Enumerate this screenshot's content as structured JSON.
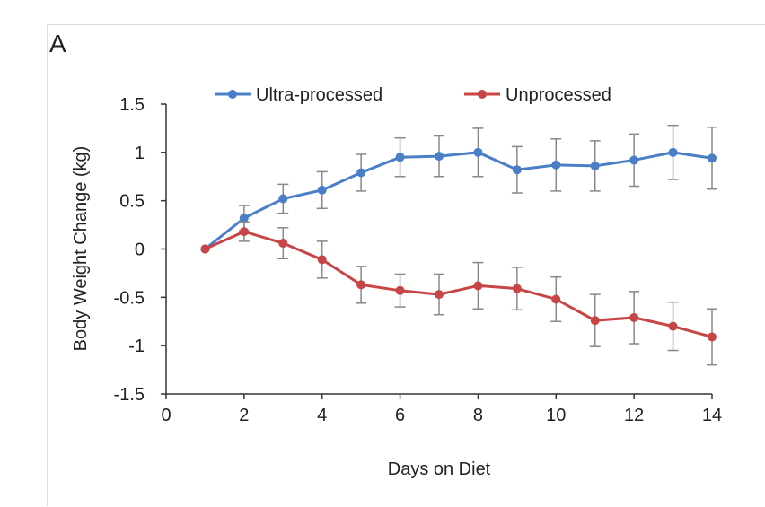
{
  "panel_label": "A",
  "chart_data": {
    "type": "line",
    "title": "",
    "xlabel": "Days on Diet",
    "ylabel": "Body Weight Change (kg)",
    "xlim": [
      0,
      14
    ],
    "ylim": [
      -1.5,
      1.5
    ],
    "xticks": [
      0,
      2,
      4,
      6,
      8,
      10,
      12,
      14
    ],
    "xtick_labels": [
      "0",
      "2",
      "4",
      "6",
      "8",
      "10",
      "12",
      "14"
    ],
    "yticks": [
      1.5,
      1,
      0.5,
      0,
      -0.5,
      -1,
      -1.5
    ],
    "ytick_labels": [
      "1.5",
      "1",
      "0.5",
      "0",
      "-0.5",
      "-1",
      "-1.5"
    ],
    "grid": false,
    "legend_position": "top",
    "x": [
      1,
      2,
      3,
      4,
      5,
      6,
      7,
      8,
      9,
      10,
      11,
      12,
      13,
      14
    ],
    "series": [
      {
        "name": "Ultra-processed",
        "color": "#4a7fc7",
        "values": [
          0,
          0.32,
          0.52,
          0.61,
          0.79,
          0.95,
          0.96,
          1.0,
          0.82,
          0.87,
          0.86,
          0.92,
          1.0,
          0.94
        ],
        "error": [
          0,
          0.13,
          0.15,
          0.19,
          0.19,
          0.2,
          0.21,
          0.25,
          0.24,
          0.27,
          0.26,
          0.27,
          0.28,
          0.32
        ]
      },
      {
        "name": "Unprocessed",
        "color": "#c84545",
        "values": [
          0,
          0.18,
          0.06,
          -0.11,
          -0.37,
          -0.43,
          -0.47,
          -0.38,
          -0.41,
          -0.52,
          -0.74,
          -0.71,
          -0.8,
          -0.91
        ],
        "error": [
          0,
          0.1,
          0.16,
          0.19,
          0.19,
          0.17,
          0.21,
          0.24,
          0.22,
          0.23,
          0.27,
          0.27,
          0.25,
          0.29
        ]
      }
    ]
  }
}
